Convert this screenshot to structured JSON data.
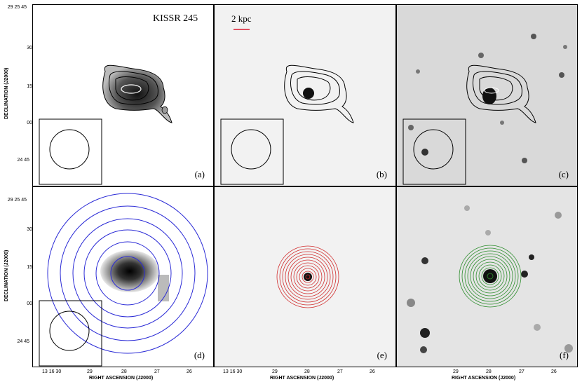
{
  "object_name": "KISSR 245",
  "scale_bar_label": "2 kpc",
  "panel_labels": [
    "(a)",
    "(b)",
    "(c)",
    "(d)",
    "(e)",
    "(f)"
  ],
  "y_axis": {
    "title": "DECLINATION (J2000)",
    "ticks": [
      "29 25 45",
      "30",
      "15",
      "00",
      "24 45"
    ]
  },
  "x_axis": {
    "title": "RIGHT ASCENSION (J2000)",
    "ticks": [
      "13 16 30",
      "29",
      "28",
      "27",
      "26"
    ]
  },
  "colors": {
    "contour": "#000000",
    "blue_rings": "#2b2bd6",
    "red_rings": "#d23030",
    "green_rings": "#2f8f2f",
    "scale_bar": "#e05060"
  }
}
